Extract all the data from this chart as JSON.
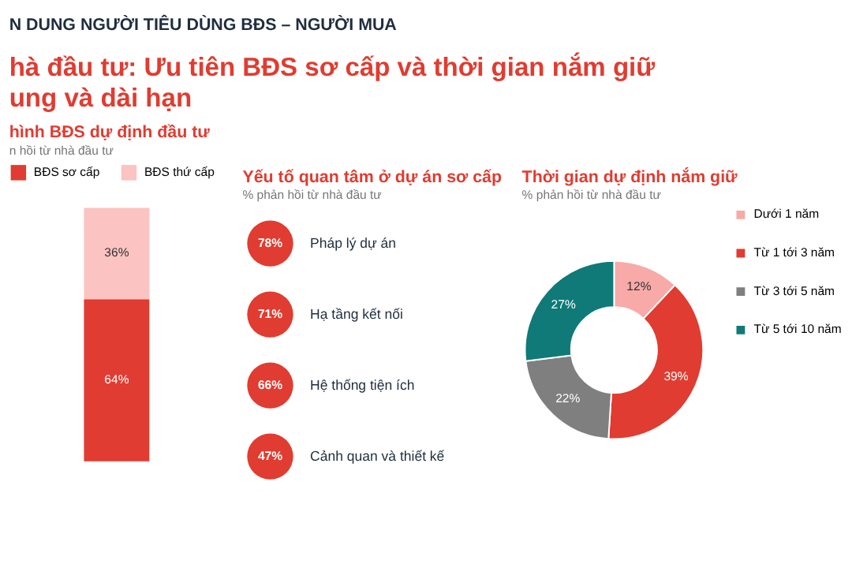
{
  "chart_data": [
    {
      "type": "other",
      "title": "hà đầu tư: Ưu tiên BĐS sơ cấp và thời gian nắm giữ ung và dài hạn",
      "annotations": [
        "N DUNG NGƯỜI TIÊU DÙNG BĐS – NGƯỜI MUA"
      ],
      "color": "#e03c31"
    },
    {
      "type": "bar",
      "title": "hình BĐS dự định đầu tư",
      "subtitle": "n hồi từ nhà đầu tư",
      "categories": [
        null
      ],
      "stacked": true,
      "legend": "top",
      "series": [
        {
          "name": "BĐS sơ cấp",
          "color": "#e03c31",
          "values": [
            64
          ],
          "value_labels": [
            "64%"
          ]
        },
        {
          "name": "BĐS thứ cấp",
          "color": "#fbc3c1",
          "values": [
            36
          ],
          "value_labels": [
            "36%"
          ]
        }
      ]
    },
    {
      "type": "other",
      "title": "Yếu tố quan tâm ở dự án sơ cấp",
      "subtitle": "% phản hồi từ nhà đầu tư",
      "categories": [
        "Pháp lý dự án",
        "Hạ tầng kết nối",
        "Hệ thống tiện ích",
        "Cảnh quan và thiết kế"
      ],
      "values": [
        78,
        71,
        66,
        47
      ],
      "value_labels": [
        "78%",
        "71%",
        "66%",
        "47%"
      ],
      "color": "#e03c31"
    },
    {
      "type": "donut",
      "title": "Thời gian dự định nắm giữ",
      "subtitle": "% phản hồi từ nhà đầu tư",
      "legend": "right",
      "categories": [
        "Dưới 1 năm",
        "Từ 1 tới 3 năm",
        "Từ 3 tới 5 năm",
        "Từ 5 tới 10 năm"
      ],
      "values": [
        12,
        39,
        22,
        27
      ],
      "value_labels": [
        "12%",
        "39%",
        "22%",
        "27%"
      ],
      "colors": [
        "#f7aaa8",
        "#e03c31",
        "#7f7f7f",
        "#0f7a78"
      ]
    }
  ]
}
